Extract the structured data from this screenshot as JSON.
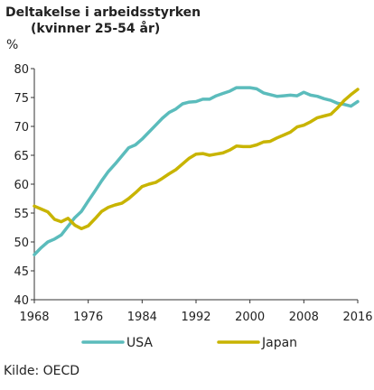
{
  "chart_data": {
    "type": "line",
    "title": "Deltakelse i arbeidsstyrken",
    "subtitle": "(kvinner 25-54 år)",
    "ylabel": "%",
    "source": "Kilde: OECD",
    "xlim": [
      1968,
      2016
    ],
    "ylim": [
      40,
      80
    ],
    "yticks": [
      40,
      45,
      50,
      55,
      60,
      65,
      70,
      75,
      80
    ],
    "xticks": [
      1968,
      1976,
      1984,
      1992,
      2000,
      2008,
      2016
    ],
    "grid": false,
    "legend_position": "bottom",
    "x": [
      1968,
      1969,
      1970,
      1971,
      1972,
      1973,
      1974,
      1975,
      1976,
      1977,
      1978,
      1979,
      1980,
      1981,
      1982,
      1983,
      1984,
      1985,
      1986,
      1987,
      1988,
      1989,
      1990,
      1991,
      1992,
      1993,
      1994,
      1995,
      1996,
      1997,
      1998,
      1999,
      2000,
      2001,
      2002,
      2003,
      2004,
      2005,
      2006,
      2007,
      2008,
      2009,
      2010,
      2011,
      2012,
      2013,
      2014,
      2015,
      2016
    ],
    "series": [
      {
        "name": "USA",
        "color": "#5bbcbc",
        "values": [
          47.8,
          49.0,
          50.0,
          50.5,
          51.2,
          52.7,
          54.2,
          55.3,
          57.1,
          58.8,
          60.6,
          62.2,
          63.5,
          64.9,
          66.3,
          66.8,
          67.8,
          69.0,
          70.2,
          71.4,
          72.4,
          73.0,
          73.9,
          74.2,
          74.3,
          74.7,
          74.7,
          75.3,
          75.7,
          76.1,
          76.7,
          76.7,
          76.7,
          76.5,
          75.8,
          75.5,
          75.2,
          75.3,
          75.4,
          75.3,
          75.9,
          75.4,
          75.2,
          74.8,
          74.5,
          74.0,
          73.8,
          73.5,
          74.3
        ]
      },
      {
        "name": "Japan",
        "color": "#c8b400",
        "values": [
          56.2,
          55.7,
          55.2,
          53.9,
          53.5,
          54.1,
          52.9,
          52.3,
          52.8,
          54.0,
          55.3,
          56.0,
          56.4,
          56.7,
          57.5,
          58.5,
          59.6,
          60.0,
          60.3,
          61.0,
          61.8,
          62.5,
          63.5,
          64.5,
          65.2,
          65.3,
          65.0,
          65.2,
          65.4,
          65.9,
          66.6,
          66.5,
          66.5,
          66.8,
          67.3,
          67.4,
          68.0,
          68.5,
          69.0,
          69.9,
          70.2,
          70.8,
          71.5,
          71.8,
          72.1,
          73.2,
          74.5,
          75.5,
          76.4
        ]
      }
    ]
  }
}
